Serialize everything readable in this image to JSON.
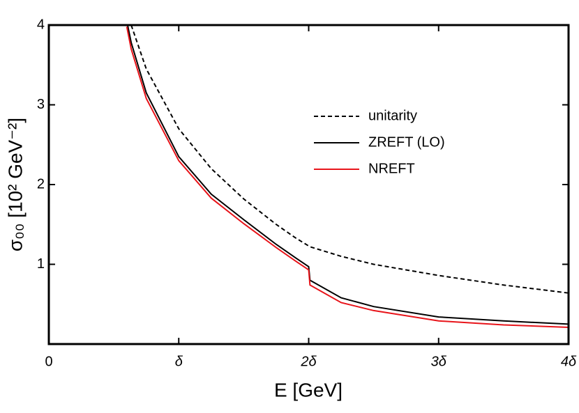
{
  "chart_data": {
    "type": "line",
    "xlabel": "E [GeV]",
    "ylabel": "σ₀₀ [10² GeV⁻²]",
    "x": [
      0.6,
      0.634,
      0.75,
      1,
      1.25,
      1.5,
      1.75,
      1.9,
      2,
      2.01,
      2.25,
      2.5,
      3,
      3.5,
      4
    ],
    "series": [
      {
        "name": "unitarity",
        "color": "#000000",
        "linestyle": "dashed",
        "values": [
          null,
          4,
          3.45,
          2.7,
          2.2,
          1.82,
          1.5,
          1.33,
          1.23,
          1.22,
          1.1,
          1.0,
          0.86,
          0.74,
          0.64
        ]
      },
      {
        "name": "ZREFT (LO)",
        "color": "#000000",
        "linestyle": "solid",
        "values": [
          4.05,
          3.78,
          3.15,
          2.35,
          1.88,
          1.56,
          1.25,
          1.08,
          0.97,
          0.8,
          0.58,
          0.47,
          0.34,
          0.29,
          0.25
        ]
      },
      {
        "name": "NREFT",
        "color": "#e8141a",
        "linestyle": "solid",
        "values": [
          3.98,
          3.7,
          3.08,
          2.3,
          1.83,
          1.51,
          1.21,
          1.04,
          0.93,
          0.74,
          0.52,
          0.42,
          0.29,
          0.24,
          0.21
        ]
      }
    ],
    "xlim": [
      0,
      4
    ],
    "xticks": [
      0,
      {
        "value": 1,
        "label": "δ"
      },
      {
        "value": 2,
        "label": "2δ"
      },
      {
        "value": 3,
        "label": "3δ"
      },
      {
        "value": 4,
        "label": "4δ"
      }
    ],
    "ylim": [
      0,
      4
    ],
    "yticks": [
      1,
      2,
      3,
      4
    ],
    "legend": "upper right"
  }
}
